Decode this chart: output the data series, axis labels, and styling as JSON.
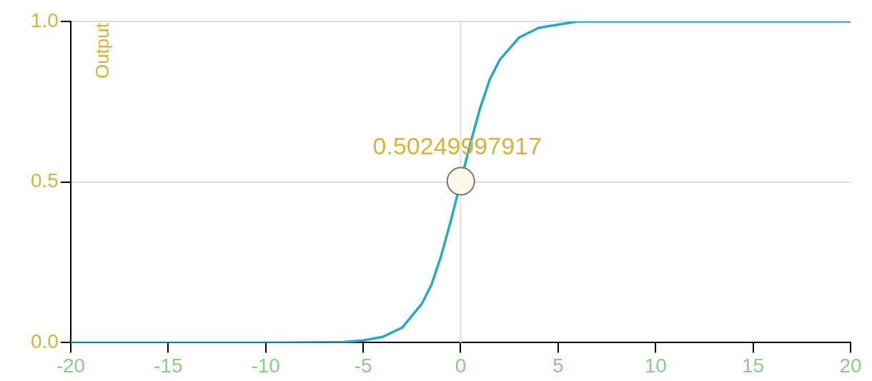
{
  "chart_data": {
    "type": "line",
    "ylabel": "Output",
    "xlim": [
      -20,
      20
    ],
    "xticks": [
      -20,
      -15,
      -10,
      -5,
      0,
      5,
      10,
      15,
      20
    ],
    "ylim": [
      0,
      1
    ],
    "yticks": [
      {
        "value": 0,
        "label": "0.0"
      },
      {
        "value": 0.5,
        "label": "0.5"
      },
      {
        "value": 1,
        "label": "1.0"
      }
    ],
    "grid": "y",
    "legend": false,
    "ref_lines": [
      {
        "axis": "x",
        "value": 0,
        "color": "#dddddd"
      }
    ],
    "series": [
      {
        "type": "line",
        "color": "#2aa8bd",
        "marker": "none",
        "x": [
          -20,
          -10,
          -6,
          -5,
          -4,
          -3,
          -2,
          -1.5,
          -1,
          -0.5,
          0,
          0.5,
          1,
          1.5,
          2,
          3,
          4,
          5,
          6,
          10,
          20
        ],
        "values": [
          0,
          0,
          0.002,
          0.007,
          0.018,
          0.047,
          0.12,
          0.18,
          0.27,
          0.38,
          null,
          0.62,
          0.73,
          0.82,
          0.88,
          0.95,
          0.98,
          0.99,
          1,
          1,
          1
        ]
      },
      {
        "type": "scatter",
        "color": "#fdf8ea",
        "marker": "circle",
        "x": [
          0.01
        ],
        "values": [
          0.50249997917
        ],
        "value_labels": [
          "0.50249997917"
        ]
      }
    ]
  }
}
